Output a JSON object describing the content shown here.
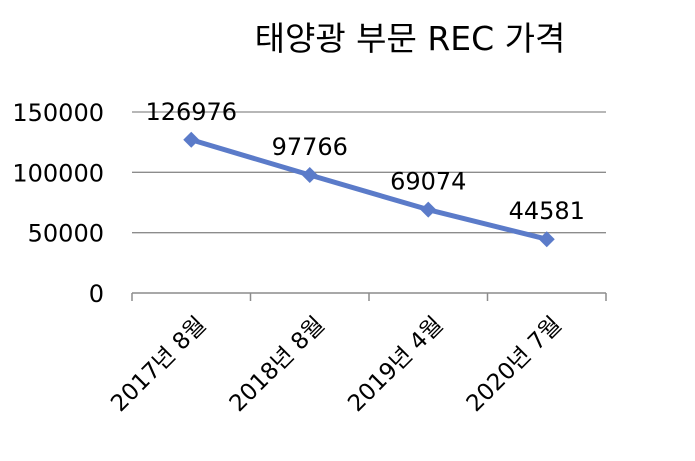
{
  "chart_data": {
    "type": "line",
    "title": "태양광 부문 REC 가격",
    "xlabel": "",
    "ylabel": "",
    "categories": [
      "2017년 8월",
      "2018년 8월",
      "2019년 4월",
      "2020년 7월"
    ],
    "series": [
      {
        "values": [
          126976,
          97766,
          69074,
          44581
        ],
        "color": "#5b7bc9"
      }
    ],
    "data_labels": [
      "126976",
      "97766",
      "69074",
      "44581"
    ],
    "ylim": [
      0,
      150000
    ],
    "yticks": [
      "0",
      "50000",
      "100000",
      "150000"
    ],
    "grid": true,
    "legend": "none",
    "marker": "diamond",
    "colors": {
      "line": "#5b7bc9",
      "grid": "#8c8c8c",
      "axis": "#8c8c8c"
    }
  }
}
